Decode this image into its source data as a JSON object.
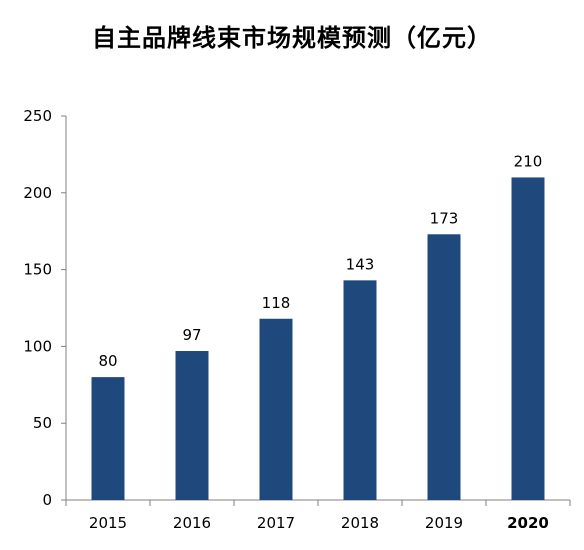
{
  "chart_data": {
    "type": "bar",
    "title": "自主品牌线束市场规模预测（亿元）",
    "xlabel": "",
    "ylabel": "",
    "categories": [
      "2015",
      "2016",
      "2017",
      "2018",
      "2019",
      "2020"
    ],
    "values": [
      80,
      97,
      118,
      143,
      173,
      210
    ],
    "data_labels": [
      "80",
      "97",
      "118",
      "143",
      "173",
      "210"
    ],
    "ylim": [
      0,
      250
    ],
    "yticks": [
      0,
      50,
      100,
      150,
      200,
      250
    ],
    "grid": false,
    "legend": "none",
    "bar_color": "#1F497D",
    "bold_categories": [
      "2020"
    ]
  }
}
